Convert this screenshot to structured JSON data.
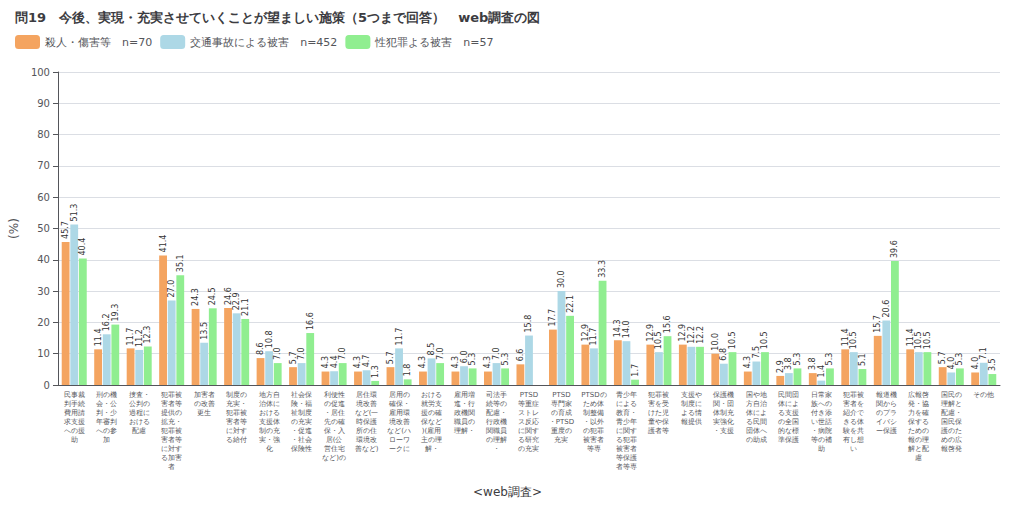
{
  "chart_data": {
    "type": "bar",
    "title": "問19　今後、実現・充実させていくことが望ましい施策（5つまで回答）　web調査の図",
    "subtitle": "<web調査>",
    "ylabel": "(%)",
    "ylim": [
      0,
      100
    ],
    "yticks": [
      0,
      10,
      20,
      30,
      40,
      50,
      60,
      70,
      80,
      90,
      100
    ],
    "grid": true,
    "legend": "upper left",
    "data_labels": true,
    "categories": [
      "民事裁\n判手続\n費用請\n求支援\nへの援\n助",
      "刑の機\n会・公\n判・少\n年審判\nへの参\n加",
      "捜査・\n公判の\n過程に\nおける\n配慮",
      "犯罪被\n害者等\n提供の\n拡充・\n犯罪被\n害者等\nに対す\nる加害\n者",
      "加害者\nの改善\n更生",
      "制度の\n充実・\n犯罪被\n害者等\nに対す\nる給付",
      "地方自\n治体に\nおける\n支援体\n制の充\n実・強\n化",
      "社会保\n険・福\n祉制度\nの充実\n・促進\n・社会\n保険性",
      "利便性\nの促進\n・居住\n先の確\n保・入\n居(公\n営住宅\nなど)の",
      "居住環\n境改善\nなど(一\n時保護\n所の住\n環境改\n善など)",
      "居用の\n確保・\n雇用環\n境改善\nなど(ハ\nローワ\nークに",
      "おける\n就労支\n援の確\n保など\n)(雇用\n主の理\n解・",
      "雇用増\n進・行\n政機関\n職員の\n理解・",
      "司法手\n続等の\n配慮・\n行政機\n関職員\nの理解\n・",
      "PTSD\n等重症\nストレ\nス反応\nに関す\nる研究\nの充実",
      "PTSD\n専門家\nの育成\n・PTSD\n重度の\n充実",
      "PTSDの\nため体\n制整備\n・以外\nの犯罪\n被害者\n等専",
      "青少年\nによる\n教育・\n青少年\nに関す\nる犯罪\n被害者\n等保護\n者等専",
      "犯罪被\n害を受\nけた児\n童や保\n護者等",
      "支援や\n制度に\nよる情\n報提供",
      "保護機\n関・団\n体制充\n実強化\n・支援",
      "国や地\n方自治\n体によ\nる民間\n団体へ\nの助成",
      "民間団\n体によ\nる支援\nの全国\n的な標\n準保護",
      "日常家\n族への\n付き添\nい世話\n・病院\n等の補\n助",
      "犯罪被\n害者を\n紹介で\nきる体\n験を共\n有し想\nい",
      "報道機\n関から\nのプラ\nイバシ\nー保護",
      "広報啓\n発・協\n力を確\n保する\nための\n報の理\n解と配\n慮",
      "国民の\n理解と\n配慮・\n国民保\n護のた\nめの広\n報啓発",
      "その他"
    ],
    "series": [
      {
        "name": "殺人・傷害等　n=70",
        "color": "#F4A460",
        "values": [
          45.7,
          11.4,
          11.7,
          41.4,
          24.3,
          24.6,
          8.6,
          5.7,
          4.3,
          4.3,
          5.7,
          4.3,
          4.3,
          4.3,
          6.6,
          17.7,
          12.9,
          14.3,
          12.9,
          12.9,
          10.0,
          4.3,
          2.9,
          3.8,
          11.4,
          15.7,
          11.4,
          5.7,
          4.0
        ],
        "value_labels": [
          "45.7",
          "11.4",
          "11.7",
          "41.4",
          "24.3",
          "24.6",
          "8.6",
          "5.7",
          "4.3",
          "4.3",
          "5.7",
          "4.3",
          "4.3",
          "4.3",
          "6.6",
          "17.7",
          "12.9",
          "14.3",
          "12.9",
          "12.9",
          "10.0",
          "4.3",
          "2.9",
          "3.8",
          "11.4",
          "15.7",
          "11.4",
          "5.7",
          "4.0"
        ]
      },
      {
        "name": "交通事故による被害　n=452",
        "color": "#ADD8E6",
        "values": [
          51.3,
          16.2,
          11.2,
          27.0,
          13.5,
          22.9,
          10.8,
          7.0,
          4.4,
          4.7,
          11.7,
          8.5,
          6.0,
          7.0,
          15.8,
          30.0,
          11.7,
          14.0,
          10.5,
          12.2,
          6.8,
          7.5,
          3.8,
          1.4,
          10.5,
          20.6,
          10.5,
          4.0,
          7.1
        ],
        "value_labels": [
          "51.3",
          "16.2",
          "11.2",
          "27.0",
          "13.5",
          "22.9",
          "10.8",
          "7.0",
          "4.4",
          "4.7",
          "11.7",
          "8.5",
          "6.0",
          "7.0",
          "15.8",
          "30.0",
          "11.7",
          "14.0",
          "10.5",
          "12.2",
          "6.8",
          "7.5",
          "3.8",
          "1.4",
          "10.5",
          "20.6",
          "10.5",
          "4.0",
          "7.1"
        ]
      },
      {
        "name": "性犯罪よる被害　n=57",
        "color": "#90EE90",
        "values": [
          40.4,
          19.3,
          12.3,
          35.1,
          24.5,
          21.1,
          7.0,
          16.6,
          7.0,
          1.3,
          1.8,
          7.0,
          5.3,
          5.3,
          0.0,
          22.1,
          33.3,
          1.7,
          15.6,
          12.2,
          10.5,
          10.5,
          5.3,
          5.3,
          5.1,
          39.6,
          10.5,
          5.3,
          3.5
        ],
        "value_labels": [
          "40.4",
          "19.3",
          "12.3",
          "35.1",
          "24.5",
          "21.1",
          "7.0",
          "16.6",
          "7.0",
          "1.3",
          "1.8",
          "7.0",
          "5.3",
          "5.3",
          null,
          "22.1",
          "33.3",
          "1.7",
          "15.6",
          "12.2",
          "10.5",
          "10.5",
          "5.3",
          "5.3",
          "5.1",
          "39.6",
          "10.5",
          "5.3",
          "3.5"
        ]
      }
    ]
  }
}
